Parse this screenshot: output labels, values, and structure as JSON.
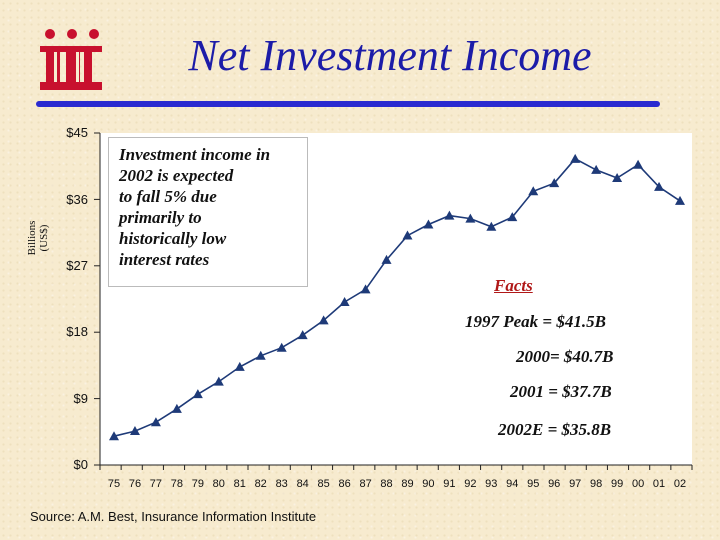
{
  "slide": {
    "title": "Net Investment Income",
    "source": "Source:  A.M. Best, Insurance Information Institute",
    "brand_color": "#c8102e",
    "title_color": "#1c1ca8",
    "rule_color": "#2a2ad0"
  },
  "callout": {
    "text": "Investment income in\n     2002 is expected\n     to fall 5% due\n     primarily to\n     historically low\n     interest rates"
  },
  "facts": {
    "title": "Facts",
    "lines": [
      "1997 Peak = $41.5B",
      "2000= $40.7B",
      "2001 = $37.7B",
      "2002E = $35.8B"
    ]
  },
  "chart_data": {
    "type": "line",
    "ylabel_line1": "Billions",
    "ylabel_line2": "(US$)",
    "ylim": [
      0,
      45
    ],
    "yticks": [
      0,
      9,
      18,
      27,
      36,
      45
    ],
    "ytick_labels": [
      "$0",
      "$9",
      "$18",
      "$27",
      "$36",
      "$45"
    ],
    "grid": false,
    "categories": [
      "75",
      "76",
      "77",
      "78",
      "79",
      "80",
      "81",
      "82",
      "83",
      "84",
      "85",
      "86",
      "87",
      "88",
      "89",
      "90",
      "91",
      "92",
      "93",
      "94",
      "95",
      "96",
      "97",
      "98",
      "99",
      "00",
      "01",
      "02"
    ],
    "values": [
      3.9,
      4.6,
      5.8,
      7.6,
      9.6,
      11.3,
      13.3,
      14.8,
      15.9,
      17.6,
      19.6,
      22.1,
      23.8,
      27.8,
      31.1,
      32.6,
      33.8,
      33.4,
      32.3,
      33.6,
      37.1,
      38.2,
      41.5,
      40.0,
      38.9,
      40.7,
      37.7,
      35.8
    ],
    "line_color": "#1e3a78",
    "marker": "triangle"
  }
}
